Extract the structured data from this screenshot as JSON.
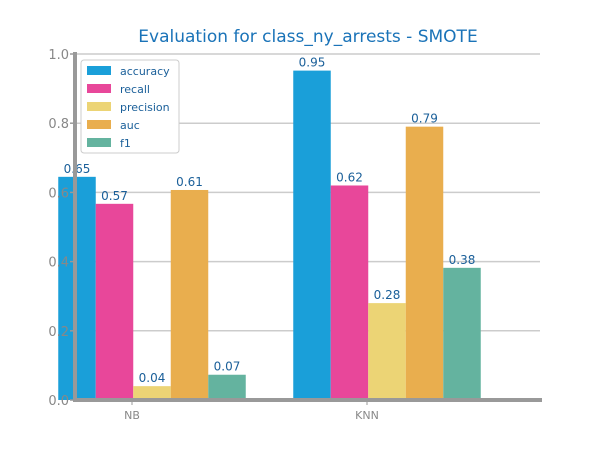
{
  "chart_data": {
    "type": "bar",
    "title": "Evaluation for class_ny_arrests - SMOTE",
    "xlabel": "",
    "ylabel": "",
    "ylim": [
      0,
      1.0
    ],
    "yticks": [
      "0.0",
      "0.2",
      "0.4",
      "0.6",
      "0.8",
      "1.0"
    ],
    "grid": true,
    "legend_position": "top-left",
    "categories": [
      "NB",
      "KNN"
    ],
    "series": [
      {
        "name": "accuracy",
        "color": "#1a9fd9",
        "values": [
          0.645,
          0.952
        ],
        "labels": [
          "0.65",
          "0.95"
        ]
      },
      {
        "name": "recall",
        "color": "#e8479a",
        "values": [
          0.567,
          0.62
        ],
        "labels": [
          "0.57",
          "0.62"
        ]
      },
      {
        "name": "precision",
        "color": "#ecd475",
        "values": [
          0.04,
          0.28
        ],
        "labels": [
          "0.04",
          "0.28"
        ]
      },
      {
        "name": "auc",
        "color": "#e9ae4e",
        "values": [
          0.607,
          0.79
        ],
        "labels": [
          "0.61",
          "0.79"
        ]
      },
      {
        "name": "f1",
        "color": "#64b39f",
        "values": [
          0.073,
          0.382
        ],
        "labels": [
          "0.07",
          "0.38"
        ]
      }
    ]
  }
}
